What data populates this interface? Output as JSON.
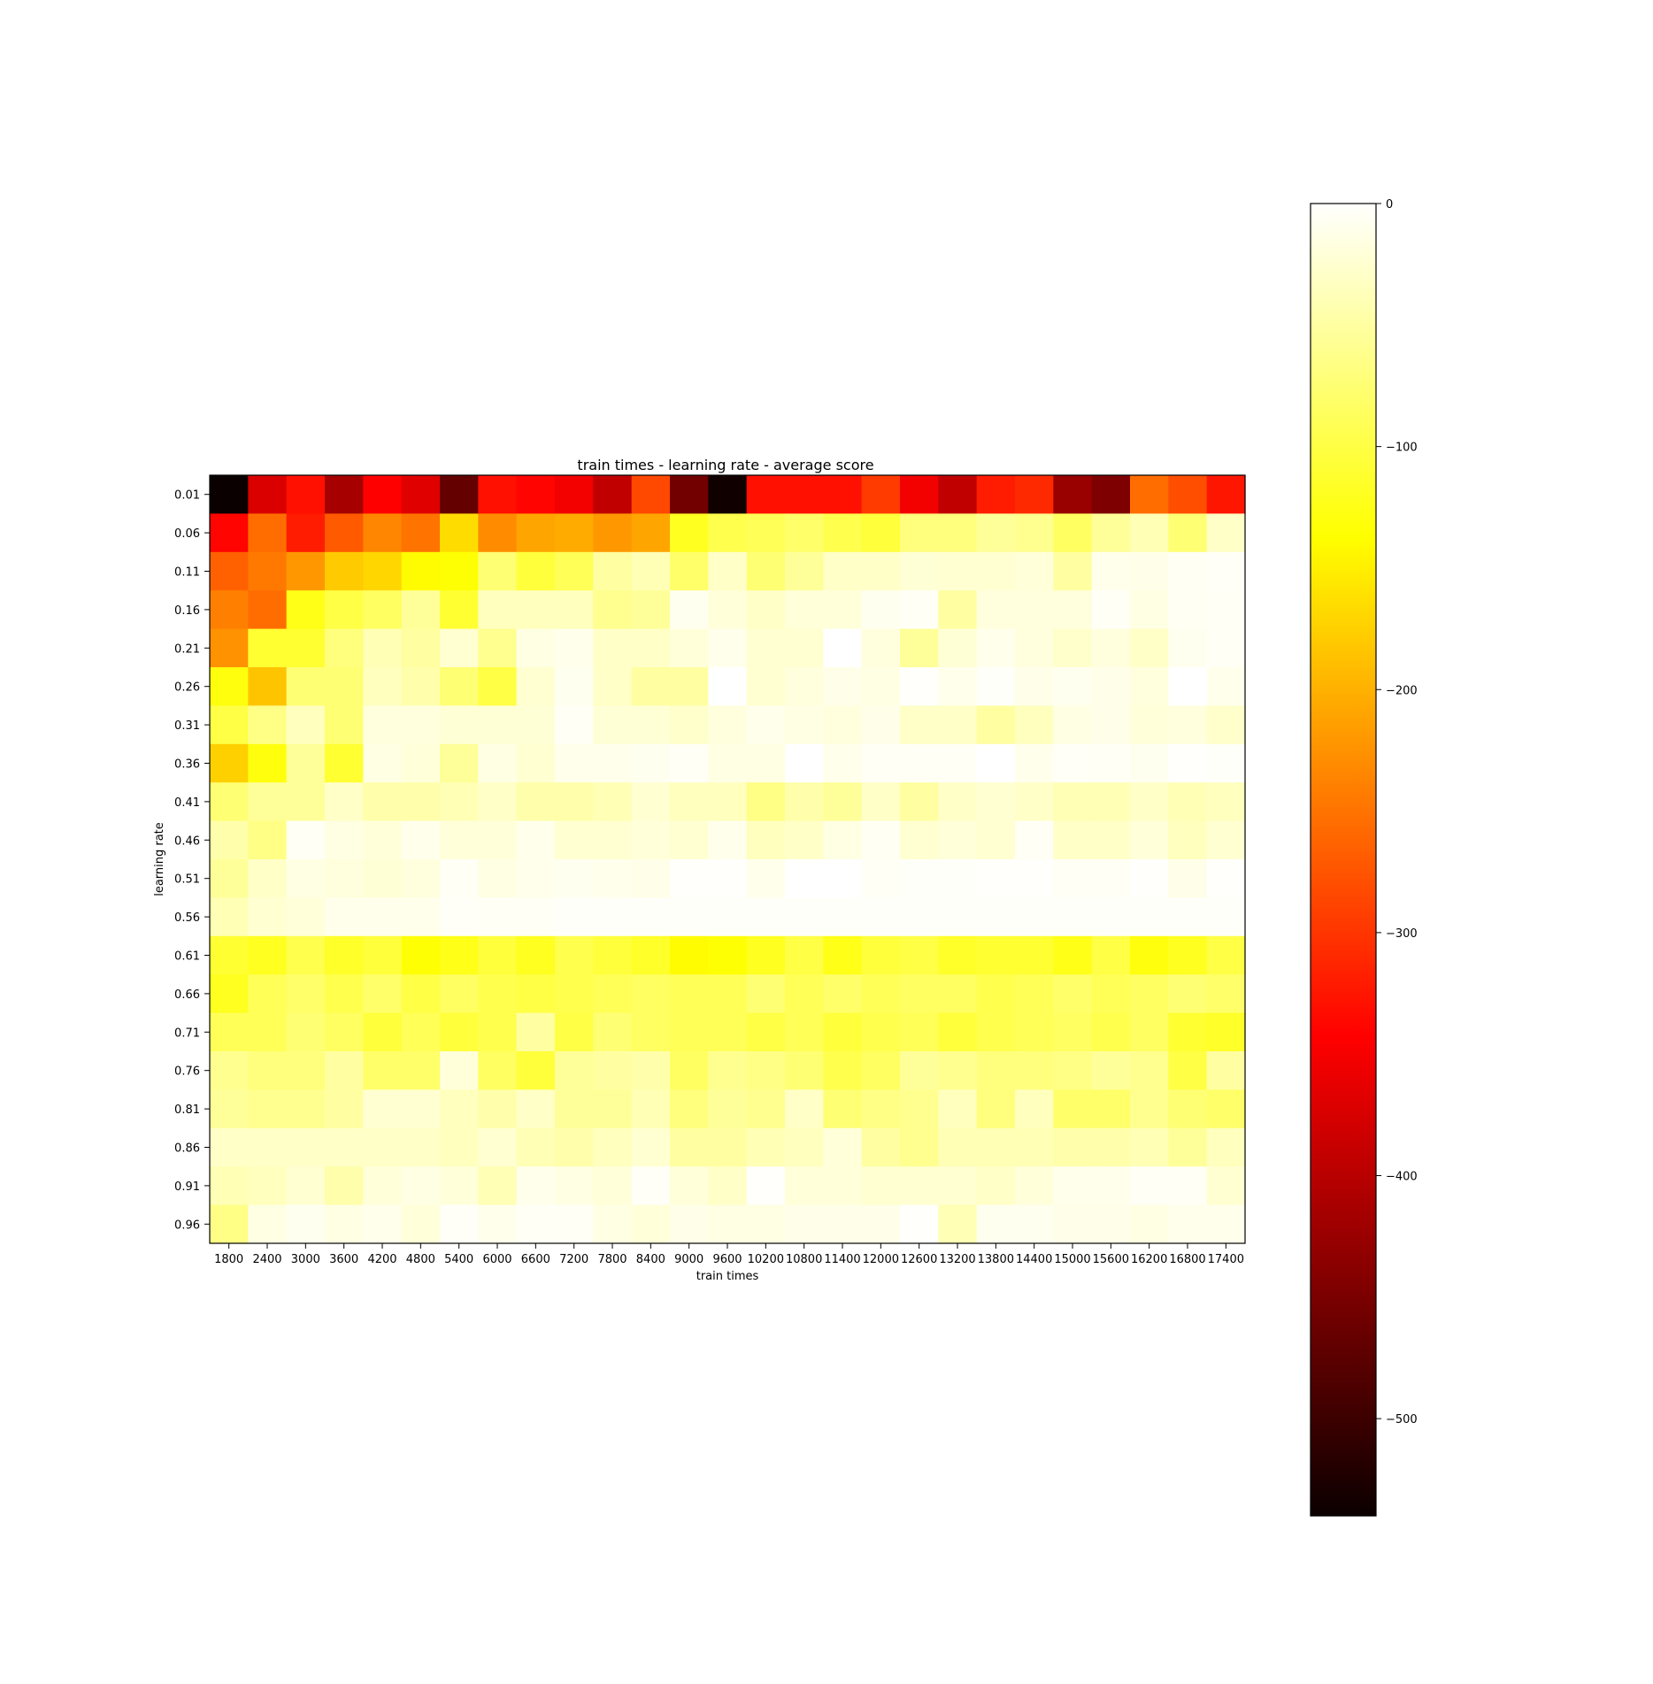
{
  "chart_data": {
    "type": "heatmap",
    "title": "train times - learning rate - average score",
    "xlabel": "train times",
    "ylabel": "learning rate",
    "x": [
      "1800",
      "2400",
      "3000",
      "3600",
      "4200",
      "4800",
      "5400",
      "6000",
      "6600",
      "7200",
      "7800",
      "8400",
      "9000",
      "9600",
      "10200",
      "10800",
      "11400",
      "12000",
      "12600",
      "13200",
      "13800",
      "14400",
      "15000",
      "15600",
      "16200",
      "16800",
      "17400"
    ],
    "y": [
      "0.01",
      "0.06",
      "0.11",
      "0.16",
      "0.21",
      "0.26",
      "0.31",
      "0.36",
      "0.41",
      "0.46",
      "0.51",
      "0.56",
      "0.61",
      "0.66",
      "0.71",
      "0.76",
      "0.81",
      "0.86",
      "0.91",
      "0.96"
    ],
    "values": [
      [
        -540,
        -380,
        -330,
        -420,
        -345,
        -375,
        -470,
        -330,
        -340,
        -360,
        -400,
        -285,
        -460,
        -535,
        -330,
        -330,
        -330,
        -295,
        -360,
        -400,
        -320,
        -310,
        -430,
        -450,
        -255,
        -280,
        -325
      ],
      [
        -340,
        -255,
        -320,
        -270,
        -235,
        -250,
        -165,
        -230,
        -210,
        -205,
        -220,
        -210,
        -120,
        -95,
        -90,
        -80,
        -95,
        -105,
        -70,
        -70,
        -55,
        -60,
        -85,
        -55,
        -40,
        -75,
        -30
      ],
      [
        -265,
        -245,
        -220,
        -180,
        -170,
        -140,
        -135,
        -75,
        -105,
        -90,
        -50,
        -40,
        -80,
        -30,
        -75,
        -55,
        -30,
        -30,
        -22,
        -25,
        -25,
        -20,
        -50,
        -10,
        -12,
        -6,
        -4
      ],
      [
        -240,
        -255,
        -125,
        -100,
        -85,
        -55,
        -110,
        -35,
        -35,
        -35,
        -60,
        -55,
        -8,
        -20,
        -30,
        -20,
        -20,
        -8,
        -5,
        -50,
        -18,
        -18,
        -18,
        -5,
        -15,
        -6,
        -5
      ],
      [
        -225,
        -110,
        -110,
        -70,
        -40,
        -50,
        -25,
        -60,
        -15,
        -10,
        -30,
        -30,
        -20,
        -10,
        -25,
        -25,
        0,
        -18,
        -55,
        -22,
        -10,
        -18,
        -28,
        -18,
        -30,
        -8,
        -5
      ],
      [
        -130,
        -185,
        -75,
        -75,
        -35,
        -45,
        -75,
        -100,
        -25,
        -8,
        -30,
        -50,
        -50,
        0,
        -25,
        -18,
        -12,
        -15,
        -2,
        -10,
        -3,
        -12,
        -8,
        -12,
        -18,
        0,
        -10
      ],
      [
        -100,
        -65,
        -35,
        -75,
        -18,
        -18,
        -22,
        -22,
        -22,
        -5,
        -22,
        -22,
        -28,
        -18,
        -10,
        -15,
        -18,
        -12,
        -30,
        -30,
        -50,
        -35,
        -15,
        -12,
        -20,
        -18,
        -28
      ],
      [
        -175,
        -130,
        -55,
        -110,
        -15,
        -20,
        -55,
        -15,
        -25,
        -10,
        -10,
        -8,
        -5,
        -15,
        -15,
        0,
        -10,
        -5,
        -5,
        -5,
        0,
        -10,
        -4,
        -5,
        -8,
        -2,
        -3
      ],
      [
        -75,
        -55,
        -55,
        -30,
        -45,
        -45,
        -40,
        -30,
        -45,
        -45,
        -40,
        -25,
        -35,
        -35,
        -65,
        -45,
        -55,
        -30,
        -50,
        -30,
        -25,
        -30,
        -40,
        -40,
        -30,
        -40,
        -35
      ],
      [
        -45,
        -65,
        -5,
        -15,
        -20,
        -10,
        -20,
        -20,
        -10,
        -25,
        -25,
        -20,
        -25,
        -10,
        -35,
        -30,
        -15,
        -6,
        -25,
        -20,
        -25,
        -5,
        -30,
        -30,
        -20,
        -35,
        -25
      ],
      [
        -55,
        -30,
        -15,
        -18,
        -22,
        -18,
        -5,
        -15,
        -10,
        -8,
        -10,
        -12,
        -2,
        -2,
        -10,
        0,
        0,
        -5,
        -3,
        -3,
        -2,
        -2,
        -5,
        -5,
        -2,
        -12,
        -2
      ],
      [
        -40,
        -25,
        -20,
        -10,
        -10,
        -10,
        -4,
        -5,
        -5,
        -3,
        -3,
        -3,
        -3,
        -3,
        -3,
        -3,
        -3,
        -3,
        -3,
        -3,
        -3,
        -3,
        -3,
        -3,
        -3,
        -3,
        -3
      ],
      [
        -110,
        -120,
        -95,
        -115,
        -105,
        -135,
        -125,
        -105,
        -120,
        -95,
        -105,
        -115,
        -140,
        -135,
        -120,
        -100,
        -125,
        -105,
        -100,
        -115,
        -110,
        -110,
        -125,
        -100,
        -130,
        -120,
        -100
      ],
      [
        -120,
        -90,
        -80,
        -95,
        -80,
        -100,
        -85,
        -95,
        -100,
        -95,
        -90,
        -85,
        -90,
        -90,
        -75,
        -90,
        -80,
        -90,
        -85,
        -85,
        -95,
        -90,
        -80,
        -90,
        -85,
        -75,
        -80
      ],
      [
        -90,
        -90,
        -75,
        -85,
        -105,
        -90,
        -105,
        -95,
        -50,
        -100,
        -75,
        -85,
        -90,
        -90,
        -100,
        -90,
        -105,
        -95,
        -90,
        -105,
        -95,
        -90,
        -85,
        -95,
        -85,
        -110,
        -115
      ],
      [
        -60,
        -70,
        -70,
        -50,
        -80,
        -80,
        -20,
        -85,
        -105,
        -55,
        -50,
        -45,
        -85,
        -60,
        -65,
        -75,
        -95,
        -85,
        -55,
        -60,
        -70,
        -70,
        -65,
        -55,
        -60,
        -100,
        -50
      ],
      [
        -55,
        -60,
        -60,
        -50,
        -25,
        -25,
        -35,
        -45,
        -30,
        -55,
        -55,
        -40,
        -70,
        -55,
        -60,
        -30,
        -75,
        -65,
        -60,
        -35,
        -70,
        -35,
        -80,
        -80,
        -60,
        -75,
        -80
      ],
      [
        -30,
        -30,
        -30,
        -30,
        -30,
        -30,
        -35,
        -25,
        -40,
        -45,
        -35,
        -25,
        -50,
        -50,
        -40,
        -35,
        -20,
        -50,
        -60,
        -40,
        -40,
        -40,
        -45,
        -45,
        -40,
        -55,
        -35
      ],
      [
        -40,
        -35,
        -25,
        -45,
        -20,
        -15,
        -20,
        -40,
        -10,
        -15,
        -20,
        -4,
        -20,
        -30,
        -2,
        -20,
        -20,
        -25,
        -25,
        -25,
        -30,
        -20,
        -10,
        -10,
        -5,
        -5,
        -25
      ],
      [
        -65,
        -15,
        -8,
        -15,
        -10,
        -20,
        -4,
        -10,
        -5,
        -5,
        -15,
        -20,
        -12,
        -15,
        -15,
        -12,
        -12,
        -12,
        -2,
        -40,
        -8,
        -8,
        -12,
        -12,
        -15,
        -10,
        -10
      ]
    ],
    "colorscale": "hot",
    "colorbar": {
      "min": -540,
      "max": 0,
      "ticks": [
        0,
        -100,
        -200,
        -300,
        -400,
        -500
      ]
    }
  }
}
